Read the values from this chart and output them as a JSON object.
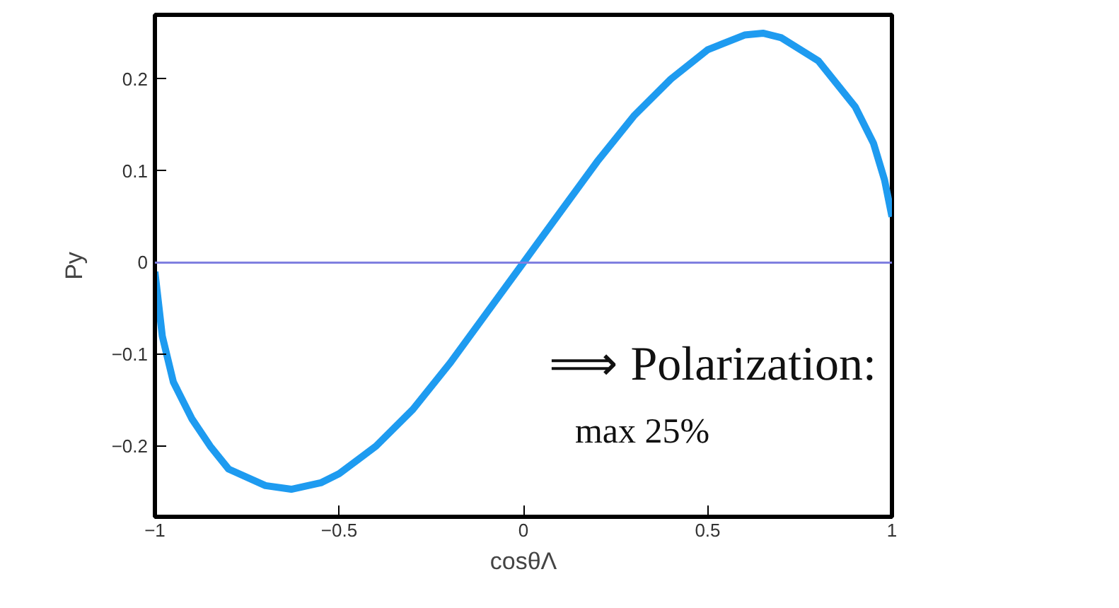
{
  "chart_data": {
    "type": "line",
    "xlabel": "cosθΛ",
    "ylabel": "Py",
    "x": [
      -1,
      -0.98,
      -0.95,
      -0.9,
      -0.85,
      -0.8,
      -0.7,
      -0.63,
      -0.55,
      -0.5,
      -0.4,
      -0.3,
      -0.2,
      -0.1,
      0,
      0.1,
      0.2,
      0.3,
      0.4,
      0.5,
      0.6,
      0.65,
      0.7,
      0.8,
      0.9,
      0.95,
      0.98,
      1
    ],
    "series": [
      {
        "color": "#1e9bf0",
        "values": [
          -0.01,
          -0.08,
          -0.13,
          -0.17,
          -0.2,
          -0.225,
          -0.243,
          -0.247,
          -0.24,
          -0.23,
          -0.2,
          -0.16,
          -0.11,
          -0.055,
          0,
          0.055,
          0.11,
          0.16,
          0.2,
          0.232,
          0.248,
          0.25,
          0.245,
          0.22,
          0.17,
          0.13,
          0.09,
          0.05
        ]
      }
    ],
    "xlim": [
      -1,
      1
    ],
    "ylim": [
      -0.277,
      0.27
    ],
    "xticks": [
      {
        "value": -1,
        "label": "−1"
      },
      {
        "value": -0.5,
        "label": "−0.5"
      },
      0,
      0.5,
      1
    ],
    "yticks": [
      {
        "value": -0.2,
        "label": "−0.2"
      },
      {
        "value": -0.1,
        "label": "−0.1"
      },
      0,
      0.1,
      0.2
    ],
    "ref_lines": [
      {
        "axis": "y",
        "value": 0,
        "color": "#7f7fe0"
      }
    ],
    "annotations": [
      "⟹ Polarization:",
      "max 25%"
    ],
    "grid": false,
    "line_style": "solid"
  }
}
